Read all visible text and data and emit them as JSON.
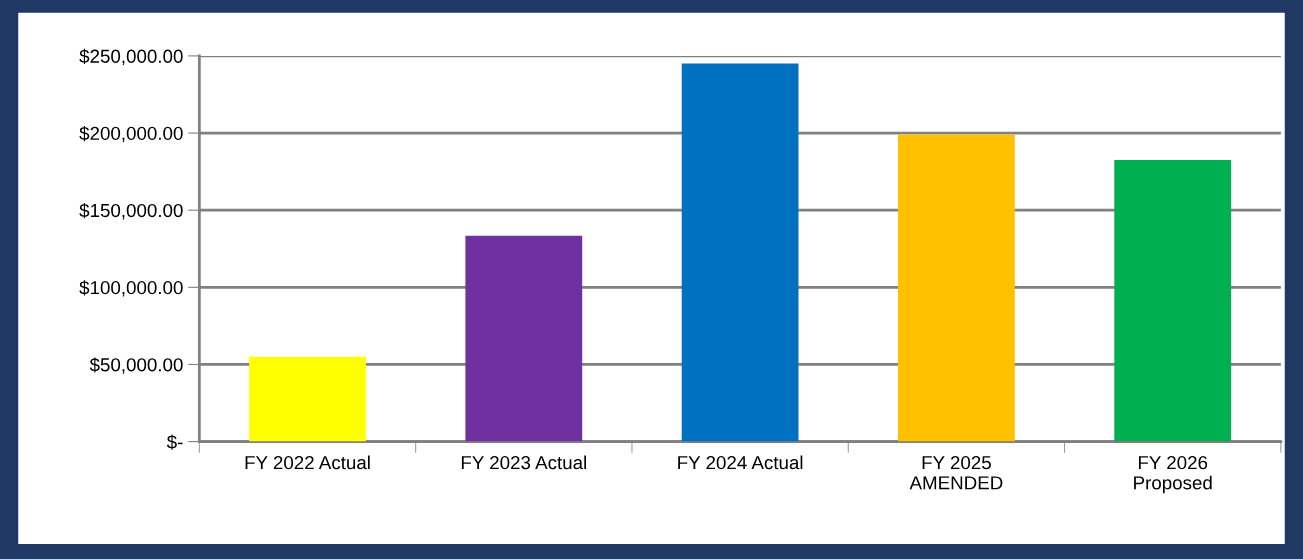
{
  "chart_data": {
    "type": "bar",
    "categories": [
      "FY 2022 Actual",
      "FY 2023 Actual",
      "FY 2024 Actual",
      "FY 2025\nAMENDED",
      "FY 2026\nProposed"
    ],
    "values": [
      55000,
      133500,
      245000,
      199000,
      182500
    ],
    "colors": [
      "#ffff00",
      "#7030a0",
      "#0070c0",
      "#ffc000",
      "#00b050"
    ],
    "ylim": [
      0,
      250000
    ],
    "yticks": [
      {
        "value": 0,
        "label": "$-"
      },
      {
        "value": 50000,
        "label": "$50,000.00"
      },
      {
        "value": 100000,
        "label": "$100,000.00"
      },
      {
        "value": 150000,
        "label": "$150,000.00"
      },
      {
        "value": 200000,
        "label": "$200,000.00"
      },
      {
        "value": 250000,
        "label": "$250,000.00"
      }
    ],
    "grid": "y",
    "legend": false
  }
}
